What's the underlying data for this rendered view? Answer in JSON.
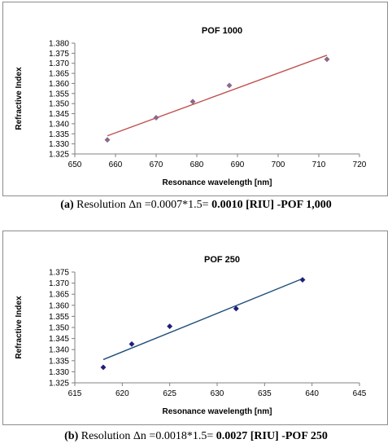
{
  "chart_data": [
    {
      "type": "scatter",
      "title": "POF 1000",
      "xlabel": "Resonance wavelength [nm]",
      "ylabel": "Refractive Index",
      "xlim": [
        650,
        720
      ],
      "ylim": [
        1.325,
        1.38
      ],
      "xticks": [
        "650",
        "660",
        "670",
        "680",
        "690",
        "700",
        "710",
        "720"
      ],
      "yticks": [
        "1.325",
        "1.330",
        "1.335",
        "1.340",
        "1.345",
        "1.350",
        "1.355",
        "1.360",
        "1.365",
        "1.370",
        "1.375",
        "1.380"
      ],
      "points": [
        {
          "x": 658,
          "y": 1.332
        },
        {
          "x": 670,
          "y": 1.343
        },
        {
          "x": 679,
          "y": 1.351
        },
        {
          "x": 688,
          "y": 1.359
        },
        {
          "x": 712,
          "y": 1.372
        }
      ],
      "trendline": {
        "x": [
          658,
          712
        ],
        "y": [
          1.334,
          1.374
        ]
      },
      "marker": "diamond",
      "marker_color": "#8a6a8a",
      "line_color": "#c0504d",
      "grid": false,
      "legend": "none"
    },
    {
      "type": "scatter",
      "title": "POF 250",
      "xlabel": "Resonance wavelength [nm]",
      "ylabel": "Refractive Index",
      "xlim": [
        615,
        645
      ],
      "ylim": [
        1.325,
        1.375
      ],
      "xticks": [
        "615",
        "620",
        "625",
        "630",
        "635",
        "640",
        "645"
      ],
      "yticks": [
        "1.325",
        "1.330",
        "1.335",
        "1.340",
        "1.345",
        "1.350",
        "1.355",
        "1.360",
        "1.365",
        "1.370",
        "1.375"
      ],
      "points": [
        {
          "x": 618,
          "y": 1.332
        },
        {
          "x": 621,
          "y": 1.3425
        },
        {
          "x": 625,
          "y": 1.3505
        },
        {
          "x": 632,
          "y": 1.3585
        },
        {
          "x": 639,
          "y": 1.3715
        }
      ],
      "trendline": {
        "x": [
          618,
          639
        ],
        "y": [
          1.3355,
          1.372
        ]
      },
      "marker": "diamond",
      "marker_color": "#1f1f7a",
      "line_color": "#1f4e79",
      "grid": false,
      "legend": "none"
    }
  ],
  "captions": [
    {
      "label": "(a)",
      "text": " Resolution Δn =0.0007*1.5= ",
      "bold": "0.0010 [RIU] -POF 1,000"
    },
    {
      "label": "(b)",
      "text": " Resolution Δn =0.0018*1.5= ",
      "bold": "0.0027 [RIU] -POF 250"
    }
  ]
}
